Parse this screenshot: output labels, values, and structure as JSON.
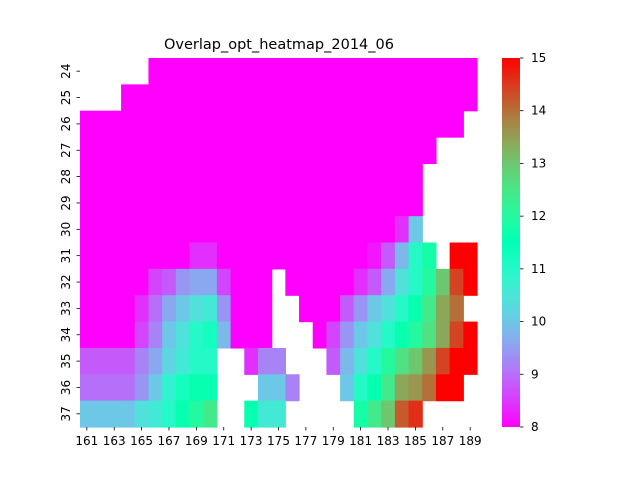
{
  "chart_data": {
    "type": "heatmap",
    "title": "Overlap_opt_heatmap_2014_06",
    "xlabel": "",
    "ylabel": "",
    "x": [
      161,
      162,
      163,
      164,
      165,
      166,
      167,
      168,
      169,
      170,
      171,
      172,
      173,
      174,
      175,
      176,
      177,
      178,
      179,
      180,
      181,
      182,
      183,
      184,
      185,
      186,
      187,
      188,
      189
    ],
    "y": [
      24,
      25,
      26,
      27,
      28,
      29,
      30,
      31,
      32,
      33,
      34,
      35,
      36,
      37
    ],
    "x_tick_labels": [
      "161",
      "163",
      "165",
      "167",
      "169",
      "171",
      "173",
      "175",
      "177",
      "179",
      "181",
      "183",
      "185",
      "187",
      "189"
    ],
    "y_tick_labels": [
      "24",
      "25",
      "26",
      "27",
      "28",
      "29",
      "30",
      "31",
      "32",
      "33",
      "34",
      "35",
      "36",
      "37"
    ],
    "colorbar": {
      "min": 8,
      "max": 15,
      "ticks": [
        "8",
        "9",
        "10",
        "11",
        "12",
        "13",
        "14",
        "15"
      ],
      "colormap": "rainbow"
    },
    "values": [
      [
        null,
        null,
        null,
        null,
        null,
        8,
        8,
        8,
        8,
        8,
        8,
        8,
        8,
        8,
        8,
        8,
        8,
        8,
        8,
        8,
        8,
        8,
        8,
        8,
        8,
        8,
        8,
        8,
        8
      ],
      [
        null,
        null,
        null,
        8,
        8,
        8,
        8,
        8,
        8,
        8,
        8,
        8,
        8,
        8,
        8,
        8,
        8,
        8,
        8,
        8,
        8,
        8,
        8,
        8,
        8,
        8,
        8,
        8,
        8
      ],
      [
        8,
        8,
        8,
        8,
        8,
        8,
        8,
        8,
        8,
        8,
        8,
        8,
        8,
        8,
        8,
        8,
        8,
        8,
        8,
        8,
        8,
        8,
        8,
        8,
        8,
        8,
        8,
        8,
        null
      ],
      [
        8,
        8,
        8,
        8,
        8,
        8,
        8,
        8,
        8,
        8,
        8,
        8,
        8,
        8,
        8,
        8,
        8,
        8,
        8,
        8,
        8,
        8,
        8,
        8,
        8,
        8,
        null,
        null,
        null
      ],
      [
        8,
        8,
        8,
        8,
        8,
        8,
        8,
        8,
        8,
        8,
        8,
        8,
        8,
        8,
        8,
        8,
        8,
        8,
        8,
        8,
        8,
        8,
        8,
        8,
        8,
        null,
        null,
        null,
        null
      ],
      [
        8,
        8,
        8,
        8,
        8,
        8,
        8,
        8,
        8,
        8,
        8,
        8,
        8,
        8,
        8,
        8,
        8,
        8,
        8,
        8,
        8,
        8,
        8,
        8,
        8,
        null,
        null,
        null,
        null
      ],
      [
        8,
        8,
        8,
        8,
        8,
        8,
        8,
        8,
        8,
        8,
        8,
        8,
        8,
        8,
        8,
        8,
        8,
        8,
        8,
        8,
        8,
        8,
        8,
        8.4,
        10,
        null,
        null,
        null,
        null
      ],
      [
        8,
        8,
        8,
        8,
        8,
        8,
        8,
        8,
        8.4,
        8.4,
        8,
        8,
        8,
        8,
        8,
        8,
        8,
        8,
        8,
        8,
        8,
        8.2,
        8.8,
        9.8,
        11,
        11.8,
        null,
        15,
        15
      ],
      [
        8,
        8,
        8,
        8,
        8,
        8.6,
        8.8,
        9.4,
        9.6,
        9.6,
        8.6,
        8,
        8,
        8,
        null,
        8,
        8,
        8,
        8,
        8,
        8.4,
        8.8,
        9.6,
        10.4,
        11,
        12,
        13,
        14.4,
        15
      ],
      [
        8,
        8,
        8,
        8,
        8.4,
        9,
        9.6,
        10,
        10.4,
        10.6,
        9.4,
        8,
        8,
        8,
        null,
        null,
        8,
        8,
        8,
        8.8,
        9.4,
        10,
        10.4,
        11,
        11.6,
        12.4,
        13.4,
        14,
        null
      ],
      [
        8,
        8,
        8,
        8,
        8.6,
        9.2,
        10,
        10.4,
        11,
        11.2,
        9.8,
        8,
        8,
        8,
        null,
        null,
        null,
        8,
        8.6,
        9.4,
        10,
        10.4,
        11,
        11.6,
        12,
        12.6,
        13.4,
        14.4,
        15
      ],
      [
        8.8,
        8.8,
        8.8,
        8.8,
        9.2,
        9.6,
        10.2,
        10.6,
        11,
        11,
        null,
        null,
        8.4,
        9.2,
        9.2,
        null,
        null,
        null,
        8.8,
        9.8,
        10.4,
        11,
        12,
        12.6,
        13,
        13.6,
        14.4,
        15,
        15
      ],
      [
        9,
        9,
        9,
        9,
        9.4,
        10,
        10.8,
        11.2,
        11.6,
        11.6,
        null,
        null,
        null,
        10,
        10,
        9.2,
        null,
        null,
        null,
        10,
        11,
        11.6,
        12.4,
        13.4,
        13.6,
        14,
        15,
        15,
        null
      ],
      [
        10,
        10,
        10,
        10,
        10.4,
        10.6,
        11,
        11.6,
        12,
        12.4,
        null,
        null,
        11.6,
        10.6,
        10.6,
        null,
        null,
        null,
        null,
        null,
        11.8,
        12.4,
        13,
        14.2,
        14.6,
        null,
        null,
        null,
        null
      ]
    ]
  }
}
